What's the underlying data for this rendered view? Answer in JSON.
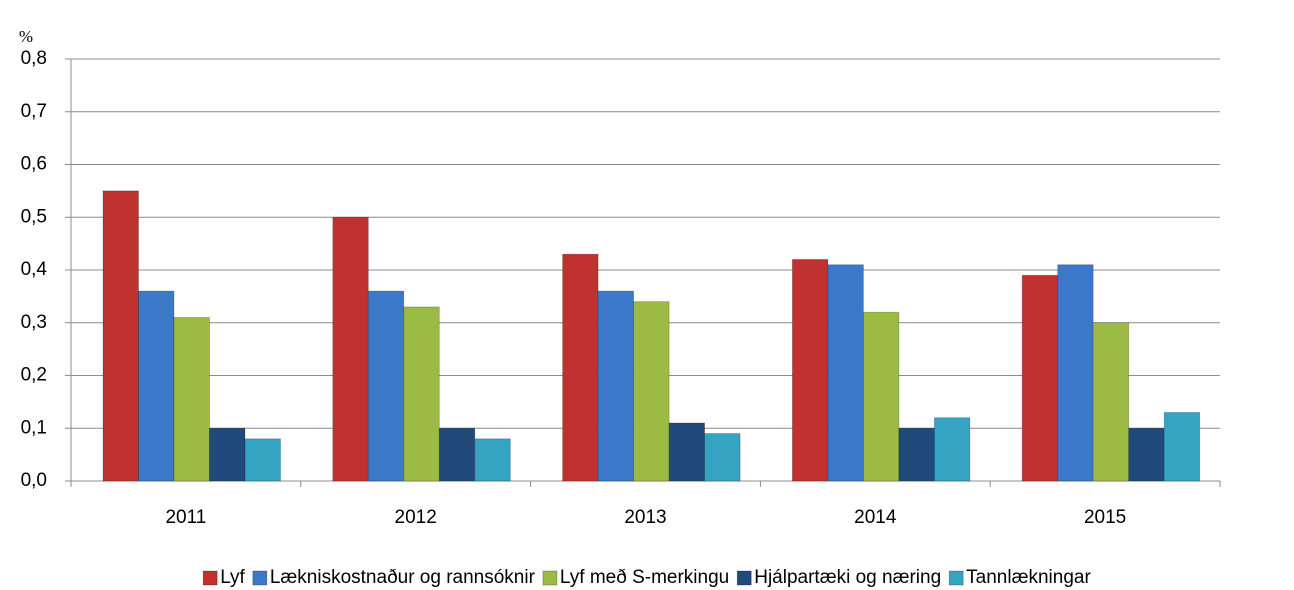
{
  "chart_data": {
    "type": "bar",
    "y_label": "%",
    "categories": [
      "2011",
      "2012",
      "2013",
      "2014",
      "2015"
    ],
    "series": [
      {
        "name": "Lyf",
        "color": "#c0322f",
        "values": [
          0.55,
          0.5,
          0.43,
          0.42,
          0.39
        ]
      },
      {
        "name": "Lækniskostnaður og rannsóknir",
        "color": "#3b78c8",
        "values": [
          0.36,
          0.36,
          0.36,
          0.41,
          0.41
        ]
      },
      {
        "name": "Lyf með S-merkingu",
        "color": "#9bbb45",
        "values": [
          0.31,
          0.33,
          0.34,
          0.32,
          0.3
        ]
      },
      {
        "name": "Hjálpartæki og næring",
        "color": "#1f4a7a",
        "values": [
          0.1,
          0.1,
          0.11,
          0.1,
          0.1
        ]
      },
      {
        "name": "Tannlækningar",
        "color": "#35a3c2",
        "values": [
          0.08,
          0.08,
          0.09,
          0.12,
          0.13
        ]
      }
    ],
    "ylim": [
      0,
      0.8
    ],
    "yticks": [
      {
        "value": 0,
        "label": "0,0"
      },
      {
        "value": 0.1,
        "label": "0,1"
      },
      {
        "value": 0.2,
        "label": "0,2"
      },
      {
        "value": 0.3,
        "label": "0,3"
      },
      {
        "value": 0.4,
        "label": "0,4"
      },
      {
        "value": 0.5,
        "label": "0,5"
      },
      {
        "value": 0.6,
        "label": "0,6"
      },
      {
        "value": 0.7,
        "label": "0,7"
      },
      {
        "value": 0.8,
        "label": "0,8"
      }
    ],
    "grid": true,
    "legend": "bottom"
  }
}
